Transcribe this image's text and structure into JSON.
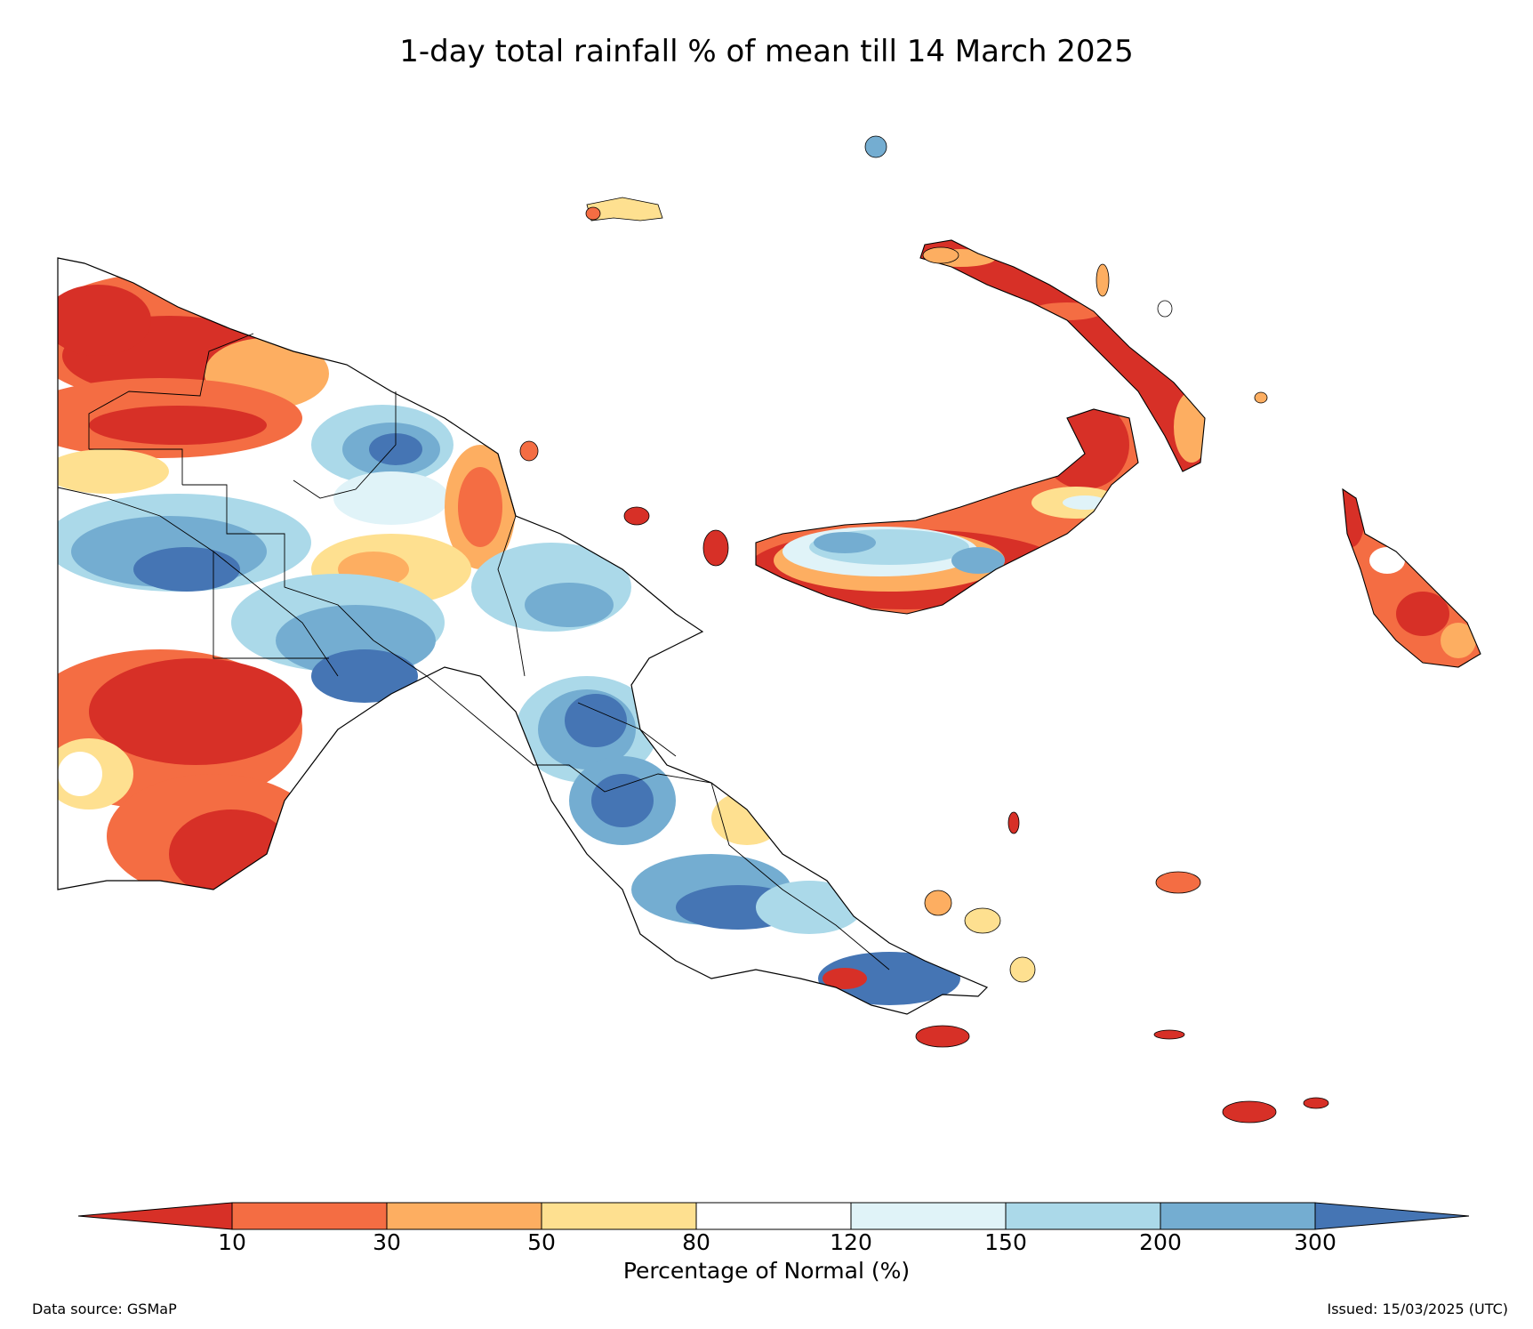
{
  "title": "1-day total rainfall % of mean till 14 March 2025",
  "legend": {
    "label": "Percentage of Normal (%)",
    "ticks": [
      "10",
      "30",
      "50",
      "80",
      "120",
      "150",
      "200",
      "300"
    ],
    "bins": [
      {
        "range": "<10",
        "color": "#d73027"
      },
      {
        "range": "10-30",
        "color": "#f46d43"
      },
      {
        "range": "30-50",
        "color": "#fdae61"
      },
      {
        "range": "50-80",
        "color": "#fee090"
      },
      {
        "range": "80-120",
        "color": "#ffffff"
      },
      {
        "range": "120-150",
        "color": "#e0f3f8"
      },
      {
        "range": "150-200",
        "color": "#abd9e9"
      },
      {
        "range": "200-300",
        "color": "#74add1"
      },
      {
        "range": ">300",
        "color": "#4575b4"
      }
    ]
  },
  "footer": {
    "source": "Data source: GSMaP",
    "issued": "Issued: 15/03/2025 (UTC)"
  }
}
